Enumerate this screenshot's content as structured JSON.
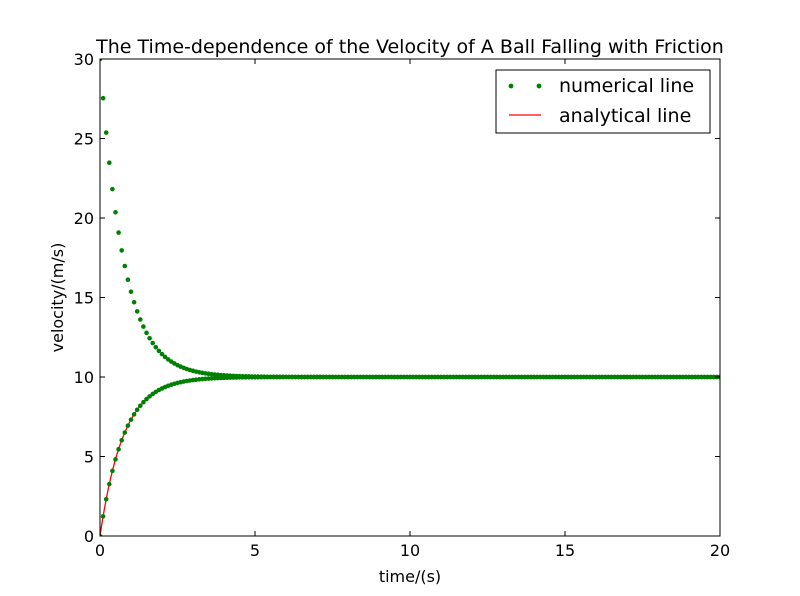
{
  "chart_data": {
    "type": "line",
    "title": "The Time-dependence of the Velocity of A Ball Falling with Friction",
    "xlabel": "time/(s)",
    "ylabel": "velocity/(m/s)",
    "xlim": [
      0,
      20
    ],
    "ylim": [
      0,
      30
    ],
    "xticks": [
      0,
      5,
      10,
      15,
      20
    ],
    "yticks": [
      0,
      5,
      10,
      15,
      20,
      25,
      30
    ],
    "grid": false,
    "legend": {
      "placement": "top-right"
    },
    "series": [
      {
        "name": "numerical line",
        "style": "dots",
        "color": "#008000",
        "t_step": 0.1,
        "t_max": 20,
        "terminal_velocity": 10,
        "time_constant": 0.76,
        "initial_velocities": [
          30,
          0
        ]
      },
      {
        "name": "analytical line",
        "style": "line",
        "color": "#ff0000",
        "t_step": 0.05,
        "t_max": 20,
        "terminal_velocity": 10,
        "time_constant": 0.76,
        "initial_velocities": [
          0
        ]
      }
    ]
  }
}
